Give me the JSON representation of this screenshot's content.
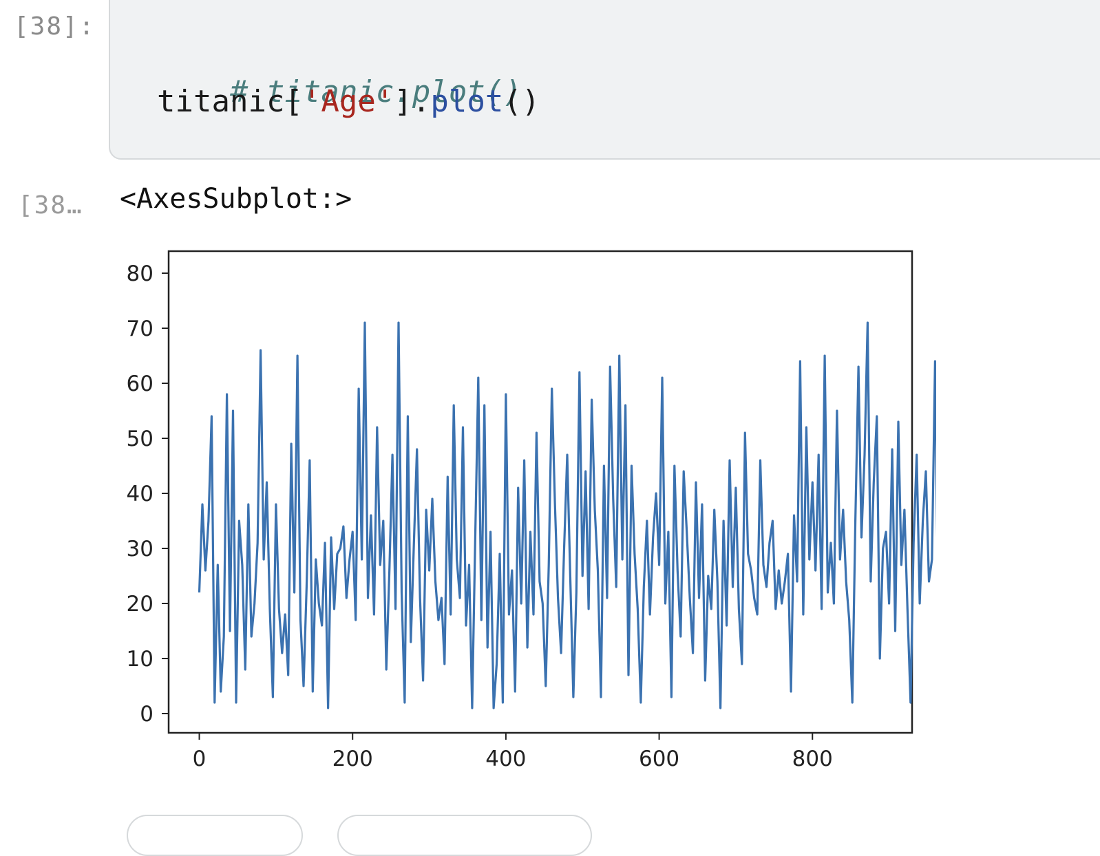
{
  "cell": {
    "in_prompt": "[38]:",
    "out_prompt": "[38…",
    "code": {
      "line1": "# titanic.plot()",
      "line2_obj": "titanic[",
      "line2_str": "'Age'",
      "line2_dot": "].",
      "line2_func": "plot",
      "line2_paren": "()"
    },
    "output_text": "<AxesSubplot:>"
  },
  "chart_data": {
    "type": "line",
    "title": "",
    "xlabel": "",
    "ylabel": "",
    "xlim": [
      -40,
      930
    ],
    "ylim": [
      -3.5,
      84
    ],
    "xticks": [
      0,
      200,
      400,
      600,
      800
    ],
    "yticks": [
      0,
      10,
      20,
      30,
      40,
      50,
      60,
      70,
      80
    ],
    "grid": false,
    "series_color": "#3b72b0",
    "series": [
      {
        "x_start": 0,
        "x_step": 4,
        "values": [
          22,
          38,
          26,
          35,
          54,
          2,
          27,
          4,
          14,
          58,
          15,
          55,
          2,
          35,
          27,
          8,
          38,
          14,
          20,
          31,
          66,
          28,
          42,
          19,
          3,
          38,
          19,
          11,
          18,
          7,
          49,
          22,
          65,
          17,
          5,
          23,
          46,
          4,
          28,
          20,
          16,
          31,
          1,
          32,
          19,
          29,
          30,
          34,
          21,
          28,
          33,
          17,
          59,
          28,
          71,
          21,
          36,
          18,
          52,
          27,
          35,
          8,
          26,
          47,
          19,
          71,
          22,
          2,
          54,
          13,
          31,
          48,
          21,
          6,
          37,
          26,
          39,
          24,
          17,
          21,
          9,
          43,
          18,
          56,
          28,
          21,
          52,
          16,
          27,
          1,
          32,
          61,
          17,
          56,
          12,
          33,
          1,
          9,
          29,
          2,
          58,
          18,
          26,
          4,
          41,
          20,
          46,
          12,
          33,
          18,
          51,
          24,
          20,
          5,
          27,
          59,
          38,
          21,
          11,
          30,
          47,
          25,
          3,
          22,
          62,
          25,
          44,
          19,
          57,
          37,
          26,
          3,
          45,
          21,
          63,
          39,
          23,
          65,
          28,
          56,
          7,
          45,
          29,
          19,
          2,
          23,
          35,
          18,
          32,
          40,
          27,
          61,
          20,
          33,
          3,
          45,
          26,
          14,
          44,
          33,
          21,
          11,
          42,
          21,
          38,
          6,
          25,
          19,
          37,
          24,
          1,
          35,
          16,
          46,
          23,
          41,
          19,
          9,
          51,
          29,
          26,
          21,
          18,
          46,
          27,
          23,
          31,
          35,
          19,
          26,
          20,
          24,
          29,
          4,
          36,
          24,
          64,
          18,
          52,
          28,
          42,
          26,
          47,
          19,
          65,
          22,
          31,
          20,
          55,
          28,
          37,
          24,
          17,
          2,
          35,
          63,
          32,
          47,
          71,
          24,
          42,
          54,
          10,
          30,
          33,
          20,
          48,
          15,
          53,
          27,
          37,
          19,
          2,
          31,
          47,
          20,
          35,
          44,
          24,
          28,
          64,
          19,
          62,
          31,
          22,
          56,
          29,
          23,
          48,
          28,
          40,
          21,
          60,
          30,
          54,
          36,
          49,
          19,
          39,
          45,
          27,
          37,
          33,
          28,
          20,
          61,
          4,
          37,
          30,
          80,
          25,
          39,
          58,
          9,
          30,
          46,
          20,
          41,
          24,
          56,
          19,
          29,
          70,
          21,
          38,
          23,
          14,
          60,
          27,
          47,
          14,
          59,
          22,
          45,
          31,
          6,
          26,
          37,
          18,
          52,
          26,
          45,
          19,
          39,
          25,
          70,
          21,
          34,
          28,
          48,
          7,
          31,
          49,
          21,
          40,
          25,
          28,
          49,
          10,
          33,
          26,
          46,
          17,
          57,
          24,
          42,
          28,
          55,
          3,
          39,
          19,
          46,
          24,
          16,
          53,
          22,
          40,
          3,
          39,
          16,
          42,
          27,
          62,
          19,
          36,
          8,
          40,
          16,
          28,
          2,
          47,
          30,
          74,
          21,
          51,
          34,
          48,
          23,
          45,
          17,
          47,
          25,
          44,
          19,
          50,
          26,
          39,
          11,
          56,
          23,
          31,
          38,
          19,
          32
        ]
      }
    ]
  }
}
